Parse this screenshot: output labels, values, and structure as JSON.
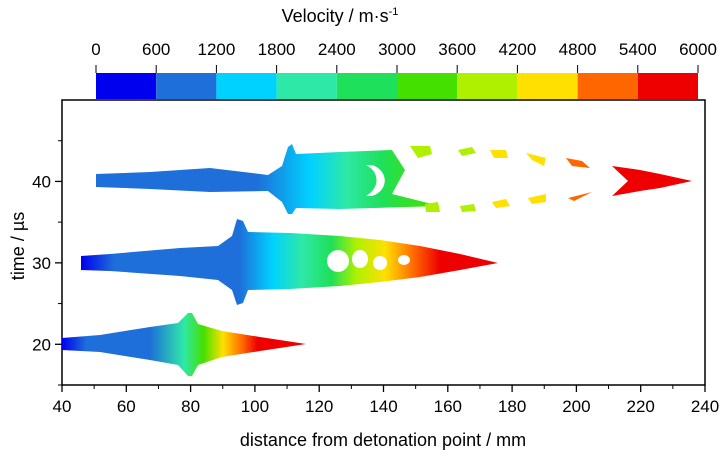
{
  "chart_data": {
    "type": "heatmap",
    "title": "",
    "xlabel": "distance from detonation point / mm",
    "ylabel": "time / µs",
    "xlim": [
      40,
      240
    ],
    "ylim": [
      15,
      50
    ],
    "x_ticks": [
      "40",
      "60",
      "80",
      "100",
      "120",
      "140",
      "160",
      "180",
      "200",
      "220",
      "240"
    ],
    "y_ticks": [
      "20",
      "30",
      "40"
    ],
    "colorbar": {
      "title_main": "Velocity / m·s",
      "title_sup": "-1",
      "ticks": [
        "0",
        "600",
        "1200",
        "1800",
        "2400",
        "3000",
        "3600",
        "4200",
        "4800",
        "5400",
        "6000"
      ],
      "bins": [
        {
          "from": 0,
          "to": 600,
          "color": "#0000ee"
        },
        {
          "from": 600,
          "to": 1200,
          "color": "#1e6fd9"
        },
        {
          "from": 1200,
          "to": 1800,
          "color": "#00d2ff"
        },
        {
          "from": 1800,
          "to": 2400,
          "color": "#2ee8a8"
        },
        {
          "from": 2400,
          "to": 3000,
          "color": "#1ee05a"
        },
        {
          "from": 3000,
          "to": 3600,
          "color": "#44e000"
        },
        {
          "from": 3600,
          "to": 4200,
          "color": "#aef000"
        },
        {
          "from": 4200,
          "to": 4800,
          "color": "#ffe000"
        },
        {
          "from": 4800,
          "to": 5400,
          "color": "#ff6600"
        },
        {
          "from": 5400,
          "to": 6000,
          "color": "#ee0000"
        }
      ]
    },
    "series": [
      {
        "time": 20,
        "x_extent": [
          40,
          115
        ],
        "velocity_range": [
          0,
          6000
        ]
      },
      {
        "time": 30,
        "x_extent": [
          46,
          175
        ],
        "velocity_range": [
          0,
          6000
        ]
      },
      {
        "time": 40,
        "x_extent": [
          51,
          237
        ],
        "velocity_range": [
          600,
          6000
        ]
      }
    ]
  }
}
